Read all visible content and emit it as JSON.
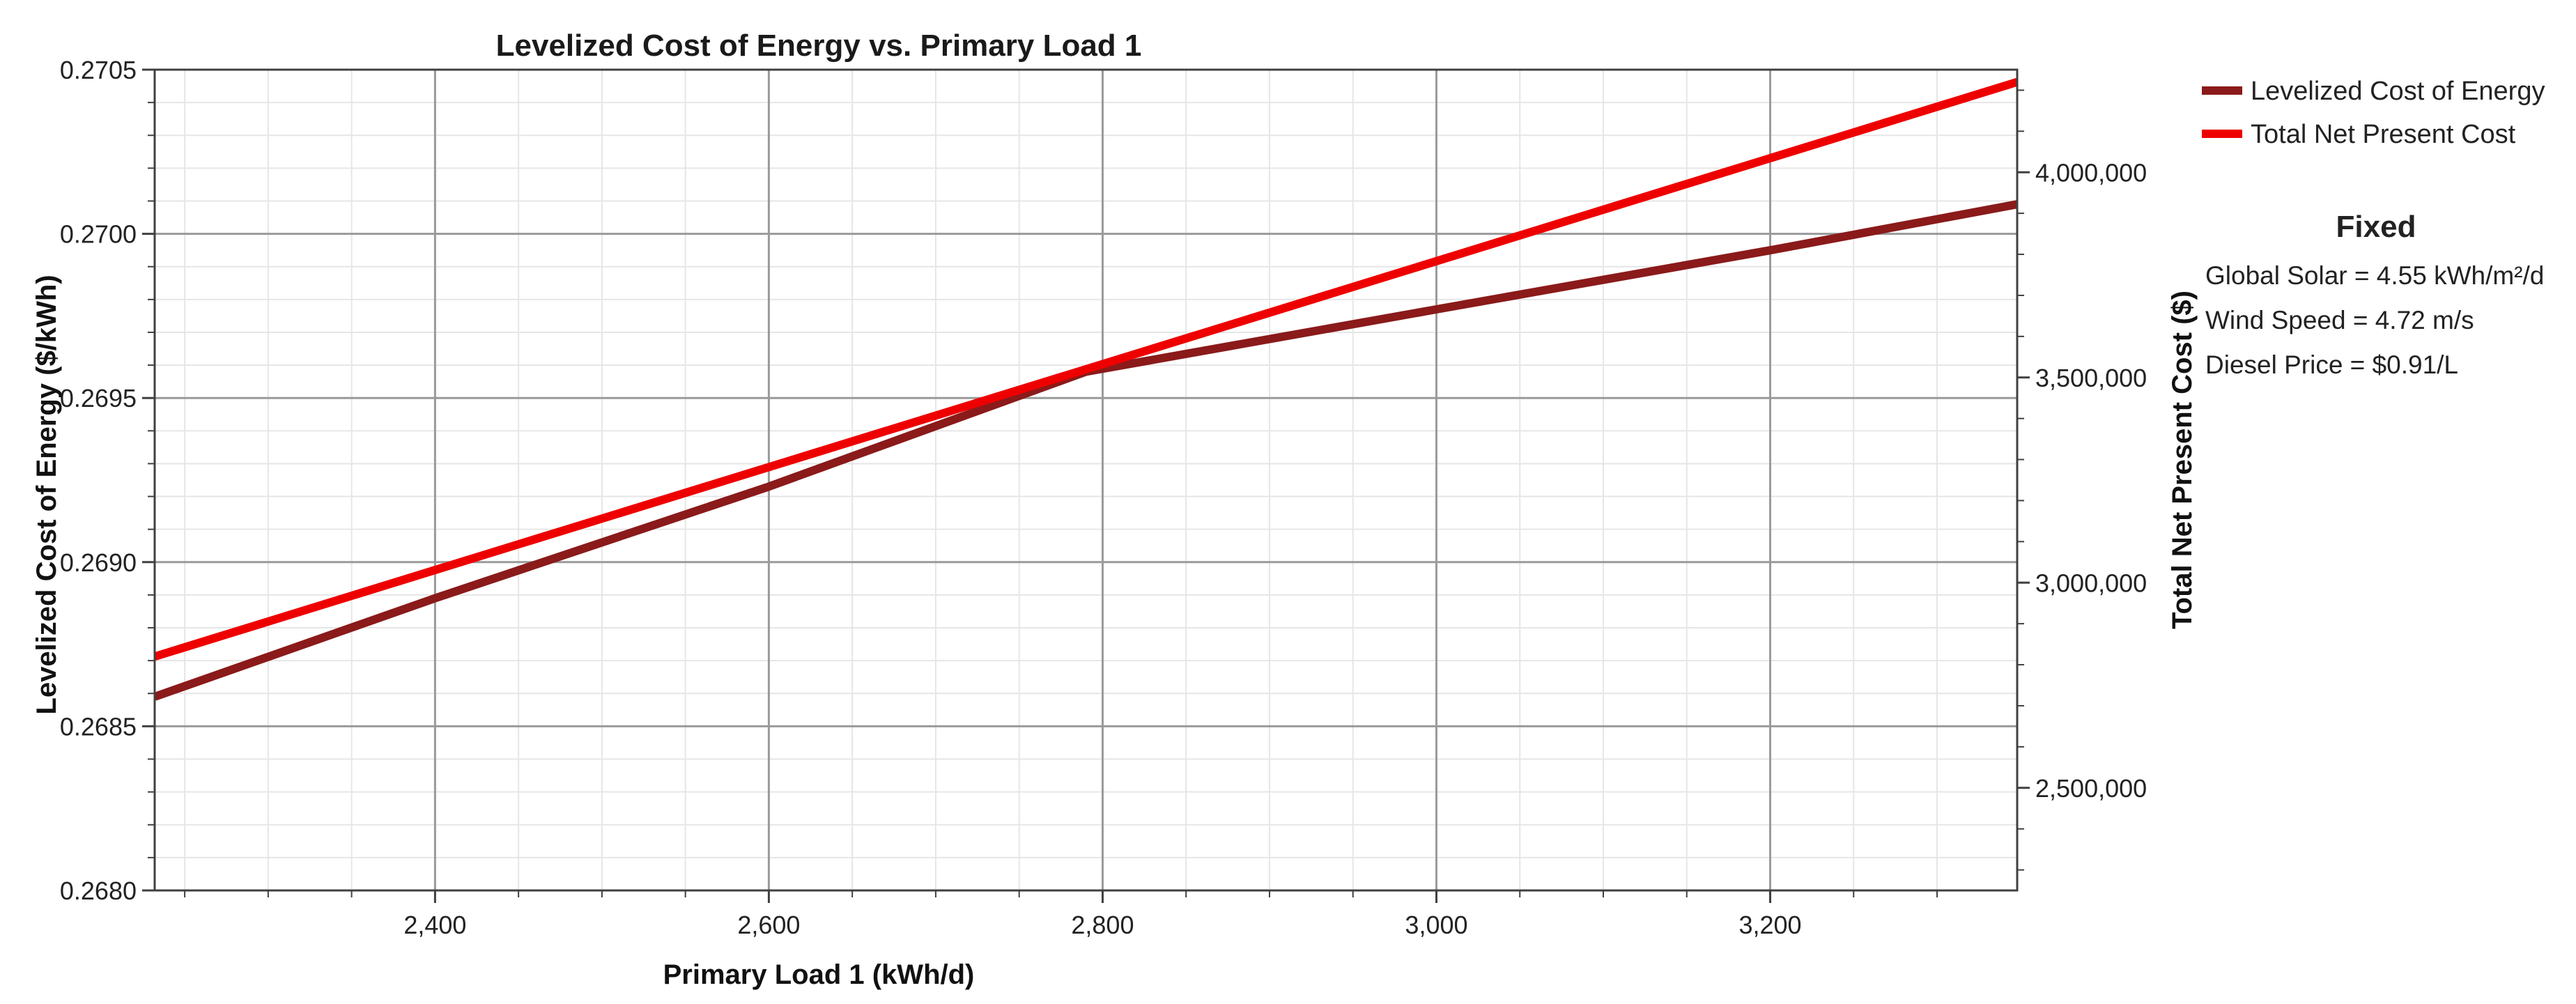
{
  "chart_data": {
    "type": "line",
    "title": "Levelized Cost of Energy vs. Primary Load 1",
    "xlabel": "Primary Load 1 (kWh/d)",
    "ylabel_left": "Levelized Cost of Energy ($/kWh)",
    "ylabel_right": "Total Net Present Cost ($)",
    "xlim": [
      2232,
      3348
    ],
    "ylim_left": [
      0.268,
      0.2705
    ],
    "ylim_right": [
      2250000,
      4250000
    ],
    "x_ticks": [
      2400,
      2600,
      2800,
      3000,
      3200
    ],
    "x_tick_labels": [
      "2,400",
      "2,600",
      "2,800",
      "3,000",
      "3,200"
    ],
    "y_left_ticks": [
      0.268,
      0.2685,
      0.269,
      0.2695,
      0.27,
      0.2705
    ],
    "y_left_tick_labels": [
      "0.2680",
      "0.2685",
      "0.2690",
      "0.2695",
      "0.2700",
      "0.2705"
    ],
    "y_right_ticks": [
      2500000,
      3000000,
      3500000,
      4000000
    ],
    "y_right_tick_labels": [
      "2,500,000",
      "3,000,000",
      "3,500,000",
      "4,000,000"
    ],
    "grid": true,
    "legend_position": "top-right",
    "series": [
      {
        "name": "Levelized Cost of Energy",
        "axis": "left",
        "color": "#8b1a1a",
        "x": [
          2232,
          2400,
          2600,
          2790,
          3000,
          3200,
          3348
        ],
        "y": [
          0.26859,
          0.26889,
          0.26923,
          0.26958,
          0.26977,
          0.26995,
          0.27009
        ]
      },
      {
        "name": "Total Net Present Cost",
        "axis": "right",
        "color": "#ee0000",
        "x": [
          2232,
          3348
        ],
        "y": [
          2820000,
          4220000
        ]
      }
    ]
  },
  "fixed_panel": {
    "title": "Fixed",
    "lines": [
      "Global Solar = 4.55 kWh/m²/d",
      "Wind Speed = 4.72 m/s",
      "Diesel Price = $0.91/L"
    ]
  }
}
